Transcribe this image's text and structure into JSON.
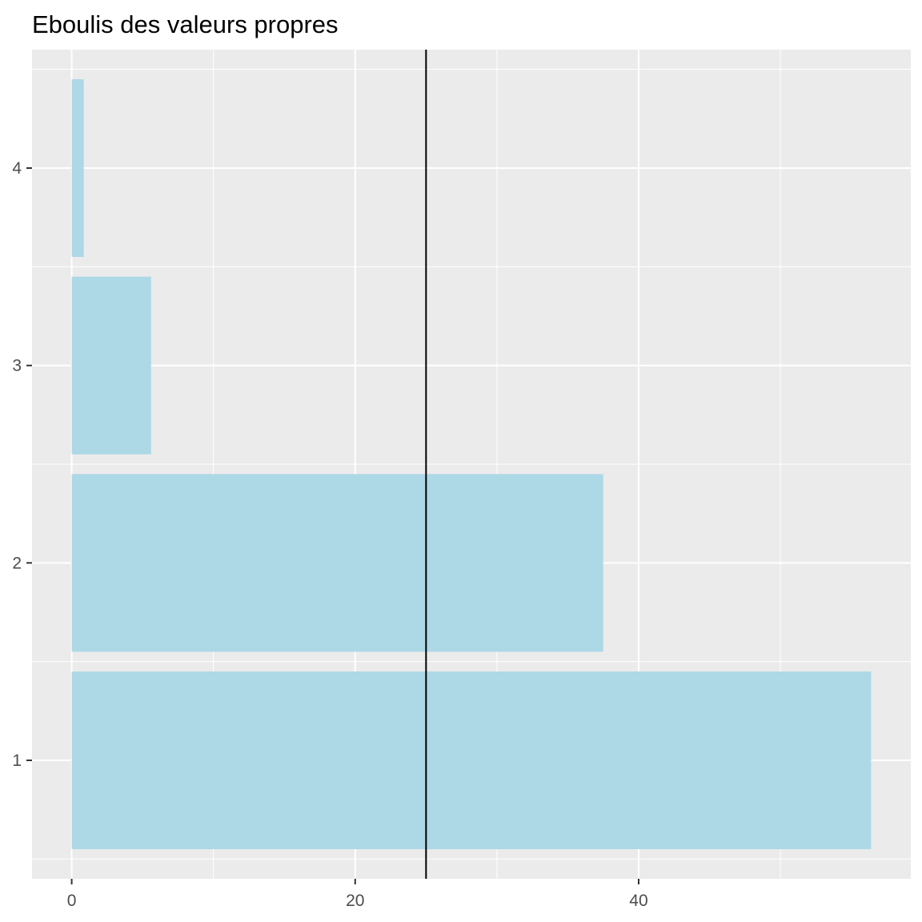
{
  "chart_data": {
    "type": "bar",
    "orientation": "horizontal",
    "title": "Eboulis des valeurs propres",
    "xlabel": "",
    "ylabel": "",
    "categories": [
      "1",
      "2",
      "3",
      "4"
    ],
    "values": [
      56.4,
      37.5,
      5.6,
      0.85
    ],
    "xlim": [
      -2.8,
      59.2
    ],
    "ylim": [
      0.4,
      4.6
    ],
    "x_ticks": [
      0,
      20,
      40
    ],
    "x_tick_labels": [
      "0",
      "20",
      "40"
    ],
    "y_ticks": [
      1,
      2,
      3,
      4
    ],
    "y_tick_labels": [
      "1",
      "2",
      "3",
      "4"
    ],
    "reference_line": {
      "orientation": "vertical",
      "value": 25,
      "color": "#000000"
    },
    "grid": true,
    "bar_color": "#ADD8E6",
    "panel_background": "#EBEBEB",
    "grid_color": "#FFFFFF"
  }
}
